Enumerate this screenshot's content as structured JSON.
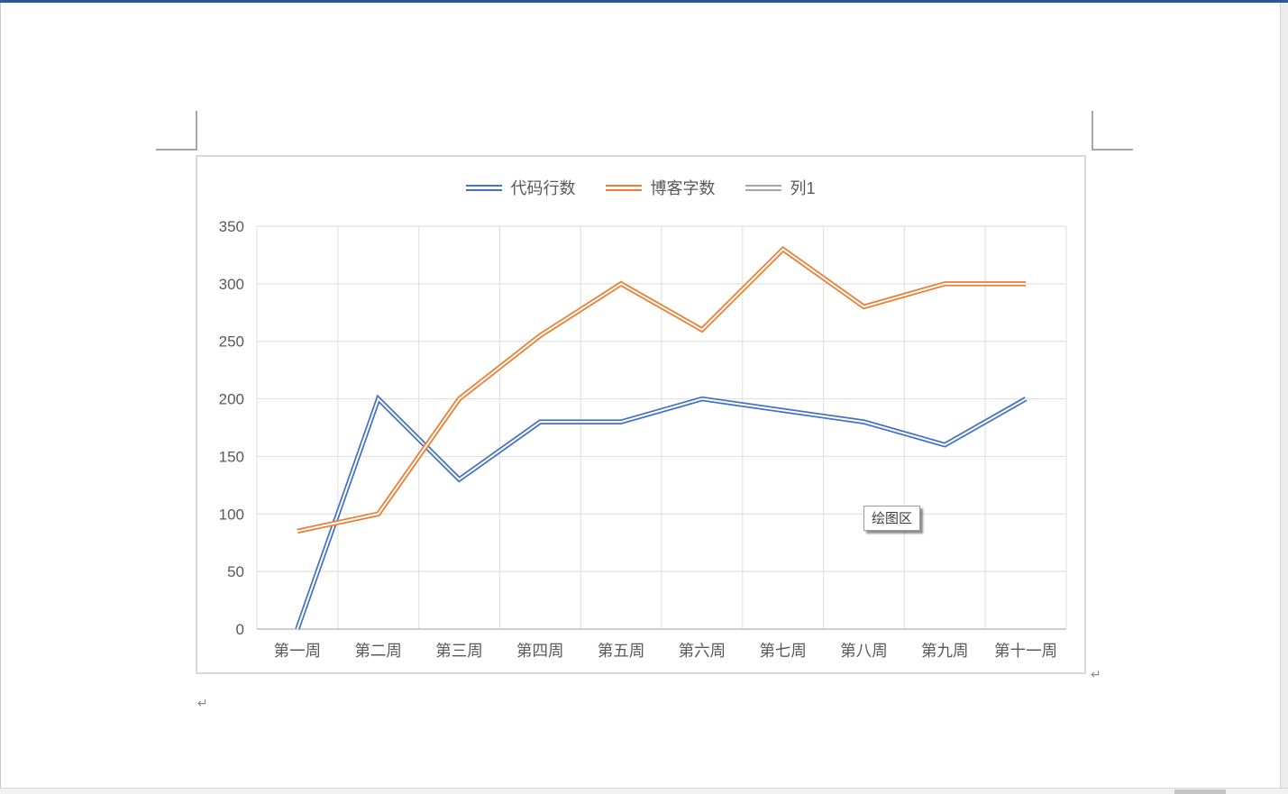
{
  "window": {
    "top_border_color": "#2b579a",
    "vertical_scrollbar": true,
    "horizontal_scrollbar": true
  },
  "page": {
    "paragraph_mark": "↵"
  },
  "tooltip": {
    "label": "绘图区"
  },
  "chart_data": {
    "type": "line",
    "title": "",
    "categories": [
      "第一周",
      "第二周",
      "第三周",
      "第四周",
      "第五周",
      "第六周",
      "第七周",
      "第八周",
      "第九周",
      "第十一周"
    ],
    "series": [
      {
        "name": "代码行数",
        "color": "#4472C4",
        "values": [
          0,
          200,
          130,
          180,
          180,
          200,
          190,
          180,
          160,
          200
        ]
      },
      {
        "name": "博客字数",
        "color": "#ED7D31",
        "values": [
          85,
          100,
          200,
          255,
          300,
          260,
          330,
          280,
          300,
          300
        ]
      },
      {
        "name": "列1",
        "color": "#A5A5A5",
        "values": []
      }
    ],
    "xlabel": "",
    "ylabel": "",
    "ylim": [
      0,
      350
    ],
    "y_ticks": [
      0,
      50,
      100,
      150,
      200,
      250,
      300,
      350
    ],
    "grid": true,
    "legend_position": "top",
    "line_style": "double",
    "grid_color": "#e2e2e2",
    "axis_color": "#bfbfbf",
    "label_color": "#595959"
  }
}
